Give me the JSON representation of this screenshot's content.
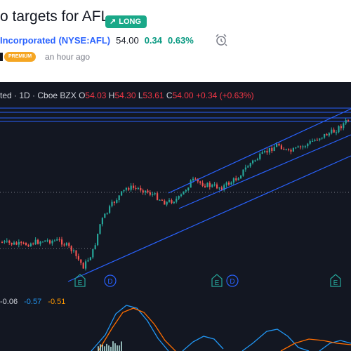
{
  "header": {
    "title": "o targets for AFL",
    "badge_label": "LONG",
    "badge_arrow": "↗",
    "company": "Incorporated",
    "symbol": "(NYSE:AFL)",
    "price": "54.00",
    "change": "0.34",
    "change_pct": "0.63%",
    "premium_label": "PREMIUM",
    "posted": "an hour ago",
    "colors": {
      "badge": "#1aa888",
      "link": "#2962ff",
      "up": "#089981",
      "premium": "#f5a623"
    },
    "icons": [
      "trend-up-arrow-icon",
      "alarm-clock-icon"
    ]
  },
  "chart_data": {
    "type": "candlestick",
    "legend": {
      "prefix": "ted",
      "interval": "1D",
      "exchange": "Cboe BZX",
      "open_label": "O",
      "open": "54.03",
      "high_label": "H",
      "high": "54.30",
      "low_label": "L",
      "low": "53.61",
      "close_label": "C",
      "close": "54.00",
      "change": "+0.34 (+0.63%)"
    },
    "event_markers": [
      {
        "label": "E",
        "kind": "earnings"
      },
      {
        "label": "D",
        "kind": "dividend"
      },
      {
        "label": "E",
        "kind": "earnings"
      },
      {
        "label": "D",
        "kind": "dividend"
      },
      {
        "label": "E",
        "kind": "earnings"
      }
    ],
    "macd_legend": {
      "histogram": "-0.06",
      "macd": "-0.57",
      "signal": "-0.51"
    },
    "colors": {
      "up": "#26a69a",
      "down": "#ef5350",
      "trendline": "#2962ff",
      "macd": "#2196f3",
      "signal": "#ff6d00",
      "background": "#131722"
    }
  }
}
